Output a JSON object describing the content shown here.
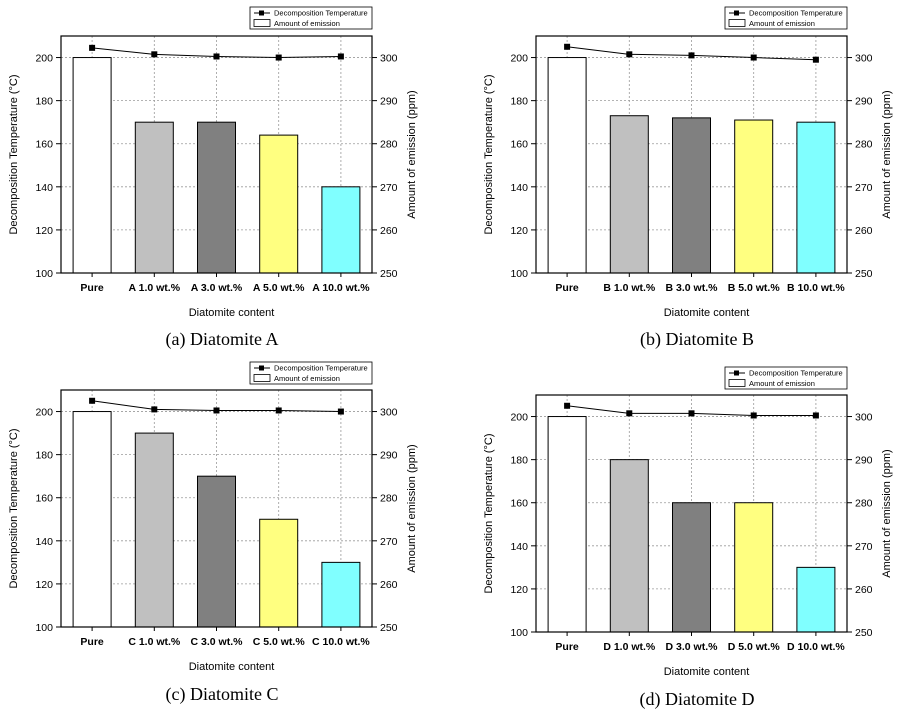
{
  "colors": {
    "temp_line": "#000000",
    "grid": "#9a9a9a",
    "bar_fills": [
      "#ffffff",
      "#c0c0c0",
      "#808080",
      "#ffff80",
      "#80ffff"
    ]
  },
  "chart_data": [
    {
      "type": "bar",
      "caption": "(a)  Diatomite  A",
      "categories": [
        "Pure",
        "A 1.0 wt.%",
        "A 3.0 wt.%",
        "A 5.0 wt.%",
        "A 10.0 wt.%"
      ],
      "xlabel": "Diatomite content",
      "ylabel": "Decomposition Temperature (°C)",
      "y2label": "Amount of emission (ppm)",
      "ylim": [
        100,
        210
      ],
      "y2lim": [
        250,
        305
      ],
      "yticks": [
        100,
        120,
        140,
        160,
        180,
        200
      ],
      "y2ticks": [
        250,
        260,
        270,
        280,
        290,
        300
      ],
      "legend": [
        "Decomposition Temperature",
        "Amount of emission"
      ],
      "legend_position": "top-right",
      "series": [
        {
          "name": "Amount of emission",
          "kind": "bar",
          "axis": "right",
          "values": [
            300,
            285,
            285,
            282,
            270
          ]
        },
        {
          "name": "Decomposition Temperature",
          "kind": "line",
          "axis": "left",
          "values": [
            204.5,
            201.5,
            200.5,
            200,
            200.5
          ]
        }
      ]
    },
    {
      "type": "bar",
      "caption": "(b)  Diatomite  B",
      "categories": [
        "Pure",
        "B 1.0 wt.%",
        "B 3.0 wt.%",
        "B 5.0 wt.%",
        "B 10.0 wt.%"
      ],
      "xlabel": "Diatomite content",
      "ylabel": "Decomposition Temperature (°C)",
      "y2label": "Amount of emission (ppm)",
      "ylim": [
        100,
        210
      ],
      "y2lim": [
        250,
        305
      ],
      "yticks": [
        100,
        120,
        140,
        160,
        180,
        200
      ],
      "y2ticks": [
        250,
        260,
        270,
        280,
        290,
        300
      ],
      "legend": [
        "Decomposition Temperature",
        "Amount of emission"
      ],
      "legend_position": "top-right",
      "series": [
        {
          "name": "Amount of emission",
          "kind": "bar",
          "axis": "right",
          "values": [
            300,
            286.5,
            286,
            285.5,
            285
          ]
        },
        {
          "name": "Decomposition Temperature",
          "kind": "line",
          "axis": "left",
          "values": [
            205,
            201.5,
            201,
            200,
            199
          ]
        }
      ]
    },
    {
      "type": "bar",
      "caption": "(c)  Diatomite  C",
      "categories": [
        "Pure",
        "C 1.0 wt.%",
        "C 3.0 wt.%",
        "C 5.0 wt.%",
        "C 10.0 wt.%"
      ],
      "xlabel": "Diatomite content",
      "ylabel": "Decomposition Temperature (°C)",
      "y2label": "Amount of emission (ppm)",
      "ylim": [
        100,
        210
      ],
      "y2lim": [
        250,
        305
      ],
      "yticks": [
        100,
        120,
        140,
        160,
        180,
        200
      ],
      "y2ticks": [
        250,
        260,
        270,
        280,
        290,
        300
      ],
      "legend": [
        "Decomposition Temperature",
        "Amount of emission"
      ],
      "legend_position": "top-right",
      "series": [
        {
          "name": "Amount of emission",
          "kind": "bar",
          "axis": "right",
          "values": [
            300,
            295,
            285,
            275,
            265
          ]
        },
        {
          "name": "Decomposition Temperature",
          "kind": "line",
          "axis": "left",
          "values": [
            205,
            201,
            200.5,
            200.5,
            200
          ]
        }
      ]
    },
    {
      "type": "bar",
      "caption": "(d)  Diatomite  D",
      "categories": [
        "Pure",
        "D 1.0 wt.%",
        "D 3.0 wt.%",
        "D 5.0 wt.%",
        "D 10.0 wt.%"
      ],
      "xlabel": "Diatomite content",
      "ylabel": "Decomposition Temperature (°C)",
      "y2label": "Amount of emission (ppm)",
      "ylim": [
        100,
        210
      ],
      "y2lim": [
        250,
        305
      ],
      "yticks": [
        100,
        120,
        140,
        160,
        180,
        200
      ],
      "y2ticks": [
        250,
        260,
        270,
        280,
        290,
        300
      ],
      "legend": [
        "Decomposition Temperature",
        "Amount of emission"
      ],
      "legend_position": "top-right",
      "series": [
        {
          "name": "Amount of emission",
          "kind": "bar",
          "axis": "right",
          "values": [
            300,
            290,
            280,
            280,
            265
          ]
        },
        {
          "name": "Decomposition Temperature",
          "kind": "line",
          "axis": "left",
          "values": [
            205,
            201.5,
            201.5,
            200.5,
            200.5
          ]
        }
      ]
    }
  ]
}
